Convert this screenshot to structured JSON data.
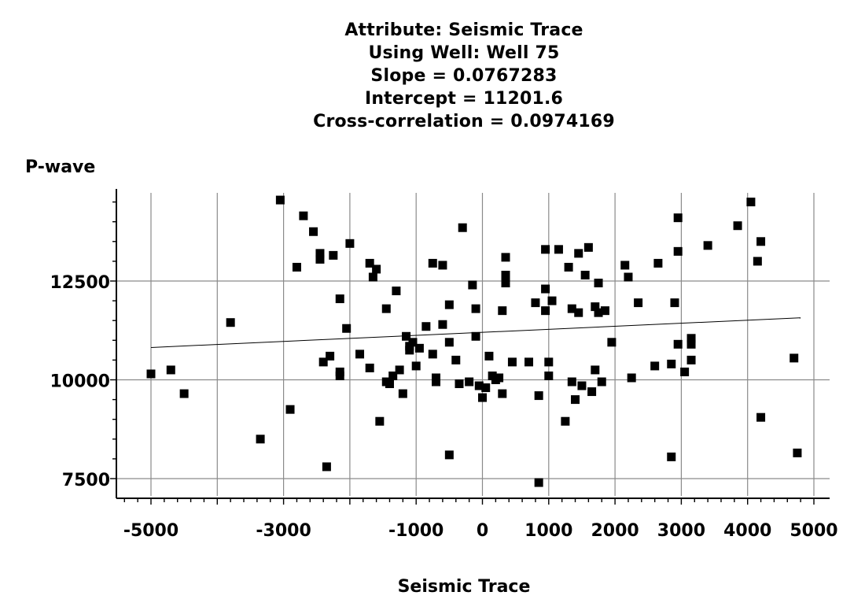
{
  "chart_data": {
    "type": "scatter",
    "title_lines": [
      "Attribute: Seismic Trace",
      "Using Well: Well 75",
      "Slope = 0.0767283",
      "Intercept = 11201.6",
      "Cross-correlation = 0.0974169"
    ],
    "xlabel": "Seismic Trace",
    "ylabel": "P-wave",
    "xlim": [
      -5500,
      5000
    ],
    "ylim": [
      7000,
      14750
    ],
    "x_ticks": [
      -5000,
      -3000,
      -1000,
      0,
      1000,
      2000,
      3000,
      4000,
      5000
    ],
    "x_tick_labels": [
      "-5000",
      "-3000",
      "-1000",
      "0",
      "1000",
      "2000",
      "3000",
      "4000",
      "5000"
    ],
    "y_ticks": [
      7500,
      10000,
      12500
    ],
    "y_tick_labels": [
      "7500",
      "10000",
      "12500"
    ],
    "x_gridlines": [
      -5000,
      -4000,
      -3000,
      -2000,
      -1000,
      0,
      1000,
      2000,
      3000,
      4000,
      5000
    ],
    "y_gridlines": [
      7500,
      10000,
      12500
    ],
    "grid": true,
    "regression": {
      "slope": 0.0767283,
      "intercept": 11201.6,
      "x_range": [
        -5000,
        4800
      ]
    },
    "points": [
      [
        -5000,
        10150
      ],
      [
        -4700,
        10250
      ],
      [
        -4500,
        9650
      ],
      [
        -3800,
        11450
      ],
      [
        -3350,
        8500
      ],
      [
        -3050,
        14550
      ],
      [
        -2900,
        9250
      ],
      [
        -2800,
        12850
      ],
      [
        -2700,
        14150
      ],
      [
        -2550,
        13750
      ],
      [
        -2450,
        13200
      ],
      [
        -2450,
        13050
      ],
      [
        -2400,
        10450
      ],
      [
        -2350,
        7800
      ],
      [
        -2300,
        10600
      ],
      [
        -2250,
        13150
      ],
      [
        -2150,
        12050
      ],
      [
        -2150,
        10200
      ],
      [
        -2150,
        10100
      ],
      [
        -2050,
        11300
      ],
      [
        -2000,
        13450
      ],
      [
        -1850,
        10650
      ],
      [
        -1700,
        10300
      ],
      [
        -1700,
        12950
      ],
      [
        -1650,
        12600
      ],
      [
        -1600,
        12800
      ],
      [
        -1550,
        8950
      ],
      [
        -1450,
        11800
      ],
      [
        -1450,
        9950
      ],
      [
        -1400,
        9900
      ],
      [
        -1350,
        10100
      ],
      [
        -1300,
        12250
      ],
      [
        -1250,
        10250
      ],
      [
        -1200,
        9650
      ],
      [
        -1150,
        11100
      ],
      [
        -1100,
        10850
      ],
      [
        -1100,
        10750
      ],
      [
        -1050,
        10950
      ],
      [
        -1000,
        10350
      ],
      [
        -950,
        10800
      ],
      [
        -850,
        11350
      ],
      [
        -750,
        12950
      ],
      [
        -750,
        10650
      ],
      [
        -700,
        10050
      ],
      [
        -700,
        9950
      ],
      [
        -600,
        12900
      ],
      [
        -600,
        11400
      ],
      [
        -500,
        11900
      ],
      [
        -500,
        10950
      ],
      [
        -500,
        8100
      ],
      [
        -400,
        10500
      ],
      [
        -350,
        9900
      ],
      [
        -300,
        13850
      ],
      [
        -200,
        9950
      ],
      [
        -150,
        12400
      ],
      [
        -100,
        11100
      ],
      [
        -100,
        11800
      ],
      [
        -50,
        9850
      ],
      [
        0,
        9550
      ],
      [
        50,
        9800
      ],
      [
        100,
        10600
      ],
      [
        150,
        10100
      ],
      [
        200,
        10000
      ],
      [
        250,
        10050
      ],
      [
        300,
        9650
      ],
      [
        300,
        11750
      ],
      [
        350,
        12450
      ],
      [
        350,
        12650
      ],
      [
        350,
        13100
      ],
      [
        450,
        10450
      ],
      [
        700,
        10450
      ],
      [
        800,
        11950
      ],
      [
        850,
        7400
      ],
      [
        850,
        9600
      ],
      [
        950,
        12300
      ],
      [
        950,
        11750
      ],
      [
        950,
        13300
      ],
      [
        1000,
        10100
      ],
      [
        1000,
        10450
      ],
      [
        1050,
        12000
      ],
      [
        1150,
        13300
      ],
      [
        1250,
        8950
      ],
      [
        1300,
        12850
      ],
      [
        1350,
        11800
      ],
      [
        1350,
        9950
      ],
      [
        1400,
        9500
      ],
      [
        1450,
        13200
      ],
      [
        1450,
        11700
      ],
      [
        1500,
        9850
      ],
      [
        1550,
        12650
      ],
      [
        1600,
        13350
      ],
      [
        1650,
        9700
      ],
      [
        1700,
        11850
      ],
      [
        1700,
        10250
      ],
      [
        1750,
        12450
      ],
      [
        1750,
        11700
      ],
      [
        1800,
        9950
      ],
      [
        1850,
        11750
      ],
      [
        1950,
        10950
      ],
      [
        2150,
        12900
      ],
      [
        2200,
        12600
      ],
      [
        2250,
        10050
      ],
      [
        2350,
        11950
      ],
      [
        2600,
        10350
      ],
      [
        2650,
        12950
      ],
      [
        2850,
        10400
      ],
      [
        2850,
        8050
      ],
      [
        2900,
        11950
      ],
      [
        2950,
        14100
      ],
      [
        2950,
        13250
      ],
      [
        2950,
        10900
      ],
      [
        3050,
        10200
      ],
      [
        3150,
        10500
      ],
      [
        3150,
        10900
      ],
      [
        3150,
        11050
      ],
      [
        3400,
        13400
      ],
      [
        3850,
        13900
      ],
      [
        4050,
        14500
      ],
      [
        4150,
        13000
      ],
      [
        4200,
        13500
      ],
      [
        4200,
        9050
      ],
      [
        4700,
        10550
      ],
      [
        4750,
        8150
      ]
    ]
  }
}
